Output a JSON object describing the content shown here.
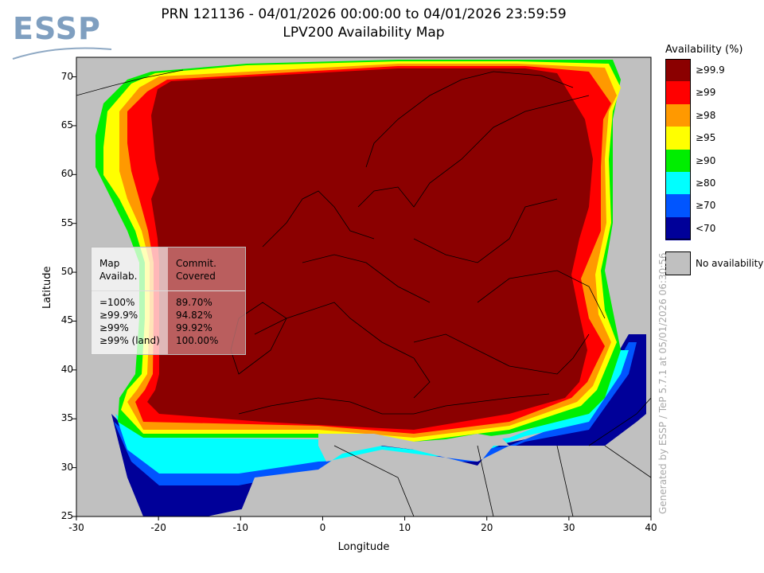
{
  "logo": {
    "text": "ESSP"
  },
  "title": {
    "line1": "PRN 121136 - 04/01/2026 00:00:00 to 04/01/2026 23:59:59",
    "line2": "LPV200 Availability Map"
  },
  "axes": {
    "xlabel": "Longitude",
    "ylabel": "Latitude",
    "xlim": [
      -30,
      40
    ],
    "ylim": [
      25,
      72
    ],
    "xticks": [
      "-30",
      "-20",
      "-10",
      "0",
      "10",
      "20",
      "30",
      "40"
    ],
    "yticks": [
      "70",
      "65",
      "60",
      "55",
      "50",
      "45",
      "40",
      "35",
      "30",
      "25"
    ]
  },
  "stats_table": {
    "header_map": [
      "Map",
      "Availab."
    ],
    "header_commit": [
      "Commit.",
      "Covered"
    ],
    "rows": [
      {
        "map": "=100%",
        "commit": "89.70%"
      },
      {
        "map": "≥99.9%",
        "commit": "94.82%"
      },
      {
        "map": "≥99%",
        "commit": "99.92%"
      },
      {
        "map": "≥99% (land)",
        "commit": "100.00%"
      }
    ]
  },
  "legend": {
    "title": "Availability (%)",
    "items": [
      {
        "label": "≥99.9",
        "color": "#8b0000"
      },
      {
        "label": "≥99",
        "color": "#ff0000"
      },
      {
        "label": "≥98",
        "color": "#ff9900"
      },
      {
        "label": "≥95",
        "color": "#ffff00"
      },
      {
        "label": "≥90",
        "color": "#00ee00"
      },
      {
        "label": "≥80",
        "color": "#00ffff"
      },
      {
        "label": "≥70",
        "color": "#0055ff"
      },
      {
        "label": "<70",
        "color": "#000099"
      }
    ],
    "no_availability": {
      "label": "No availability",
      "color": "#c0c0c0"
    }
  },
  "credit": "Generated by ESSP / TeP 5.7.1 at 05/01/2026 06:30:56"
}
